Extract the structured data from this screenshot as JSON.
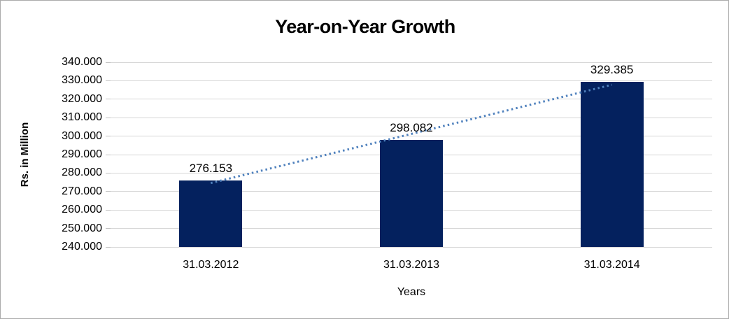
{
  "chart_data": {
    "type": "bar",
    "title": "Year-on-Year Growth",
    "xlabel": "Years",
    "ylabel": "Rs. in Million",
    "categories": [
      "31.03.2012",
      "31.03.2013",
      "31.03.2014"
    ],
    "values": [
      276.153,
      298.082,
      329.385
    ],
    "data_labels": [
      "276.153",
      "298.082",
      "329.385"
    ],
    "ylim": [
      240,
      340
    ],
    "y_tick_step": 10,
    "y_tick_labels": [
      "340.000",
      "330.000",
      "320.000",
      "310.000",
      "300.000",
      "290.000",
      "280.000",
      "270.000",
      "260.000",
      "250.000",
      "240.000"
    ],
    "grid": "horizontal",
    "legend": "none",
    "trendline": {
      "type": "linear",
      "style": "dotted"
    },
    "colors": {
      "bar": "#04215E",
      "trendline": "#4F81BD",
      "gridline": "#D6D6D6",
      "tick": "#C2C2C2",
      "text": "#000000",
      "border": "#ABABAB"
    }
  }
}
